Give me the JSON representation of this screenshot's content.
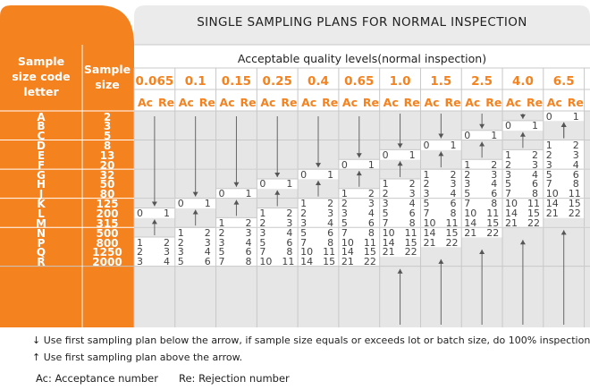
{
  "title": "SINGLE SAMPLING PLANS FOR NORMAL INSPECTION",
  "header": {
    "code_letter": [
      "Sample",
      "size code",
      "letter"
    ],
    "sample_size": [
      "Sample",
      "size"
    ],
    "aql_heading": "Acceptable quality levels(normal inspection)",
    "ac": "Ac",
    "re": "Re"
  },
  "aql_levels": [
    "0.065",
    "0.1",
    "0.15",
    "0.25",
    "0.4",
    "0.65",
    "1.0",
    "1.5",
    "2.5",
    "4.0",
    "6.5"
  ],
  "rows": [
    {
      "code": "A",
      "size": "2"
    },
    {
      "code": "B",
      "size": "3"
    },
    {
      "code": "C",
      "size": "5"
    },
    {
      "code": "D",
      "size": "8"
    },
    {
      "code": "E",
      "size": "13"
    },
    {
      "code": "F",
      "size": "20"
    },
    {
      "code": "G",
      "size": "32"
    },
    {
      "code": "H",
      "size": "50"
    },
    {
      "code": "J",
      "size": "80"
    },
    {
      "code": "K",
      "size": "125"
    },
    {
      "code": "L",
      "size": "200"
    },
    {
      "code": "M",
      "size": "315"
    },
    {
      "code": "N",
      "size": "500"
    },
    {
      "code": "P",
      "size": "800"
    },
    {
      "code": "Q",
      "size": "1250"
    },
    {
      "code": "R",
      "size": "2000"
    }
  ],
  "cells": [
    [
      "",
      "",
      "",
      "",
      "",
      "",
      "",
      "",
      "",
      "",
      "0 1"
    ],
    [
      "",
      "",
      "",
      "",
      "",
      "",
      "",
      "",
      "",
      "0 1",
      ""
    ],
    [
      "",
      "",
      "",
      "",
      "",
      "",
      "",
      "",
      "0 1",
      "",
      ""
    ],
    [
      "",
      "",
      "",
      "",
      "",
      "",
      "",
      "0 1",
      "",
      "",
      "1 2"
    ],
    [
      "",
      "",
      "",
      "",
      "",
      "",
      "0 1",
      "",
      "",
      "1 2",
      "2 3"
    ],
    [
      "",
      "",
      "",
      "",
      "",
      "0 1",
      "",
      "",
      "1 2",
      "2 3",
      "3 4"
    ],
    [
      "",
      "",
      "",
      "",
      "0 1",
      "",
      "",
      "1 2",
      "2 3",
      "3 4",
      "5 6"
    ],
    [
      "",
      "",
      "",
      "0 1",
      "",
      "",
      "1 2",
      "2 3",
      "3 4",
      "5 6",
      "7 8"
    ],
    [
      "",
      "",
      "0 1",
      "",
      "",
      "1 2",
      "2 3",
      "3 4",
      "5 6",
      "7 8",
      "10 11"
    ],
    [
      "",
      "0 1",
      "",
      "",
      "1 2",
      "2 3",
      "3 4",
      "5 6",
      "7 8",
      "10 11",
      "14 15"
    ],
    [
      "0 1",
      "",
      "",
      "1 2",
      "2 3",
      "3 4",
      "5 6",
      "7 8",
      "10 11",
      "14 15",
      "21 22"
    ],
    [
      "",
      "",
      "1 2",
      "2 3",
      "3 4",
      "5 6",
      "7 8",
      "10 11",
      "14 15",
      "21 22",
      ""
    ],
    [
      "",
      "1 2",
      "2 3",
      "3 4",
      "5 6",
      "7 8",
      "10 11",
      "14 15",
      "21 22",
      "",
      ""
    ],
    [
      "1 2",
      "2 3",
      "3 4",
      "5 6",
      "7 8",
      "10 11",
      "14 15",
      "21 22",
      "",
      "",
      ""
    ],
    [
      "2 3",
      "3 4",
      "5 6",
      "7 8",
      "10 11",
      "14 15",
      "21 22",
      "",
      "",
      "",
      ""
    ],
    [
      "3 4",
      "5 6",
      "7 8",
      "10 11",
      "14 15",
      "21 22",
      "",
      "",
      "",
      "",
      ""
    ]
  ],
  "legend": {
    "down": "Use first sampling plan below the arrow, if sample size equals or exceeds lot or batch size, do 100% inspection.",
    "up": "Use first sampling plan above the arrow.",
    "ac": "Ac: Acceptance number",
    "re": "Re: Rejection number"
  },
  "colors": {
    "orange": "#f4821f",
    "header_gray": "#ebebeb",
    "grid_gray": "#e6e6e6",
    "line": "#c8c8c8"
  }
}
